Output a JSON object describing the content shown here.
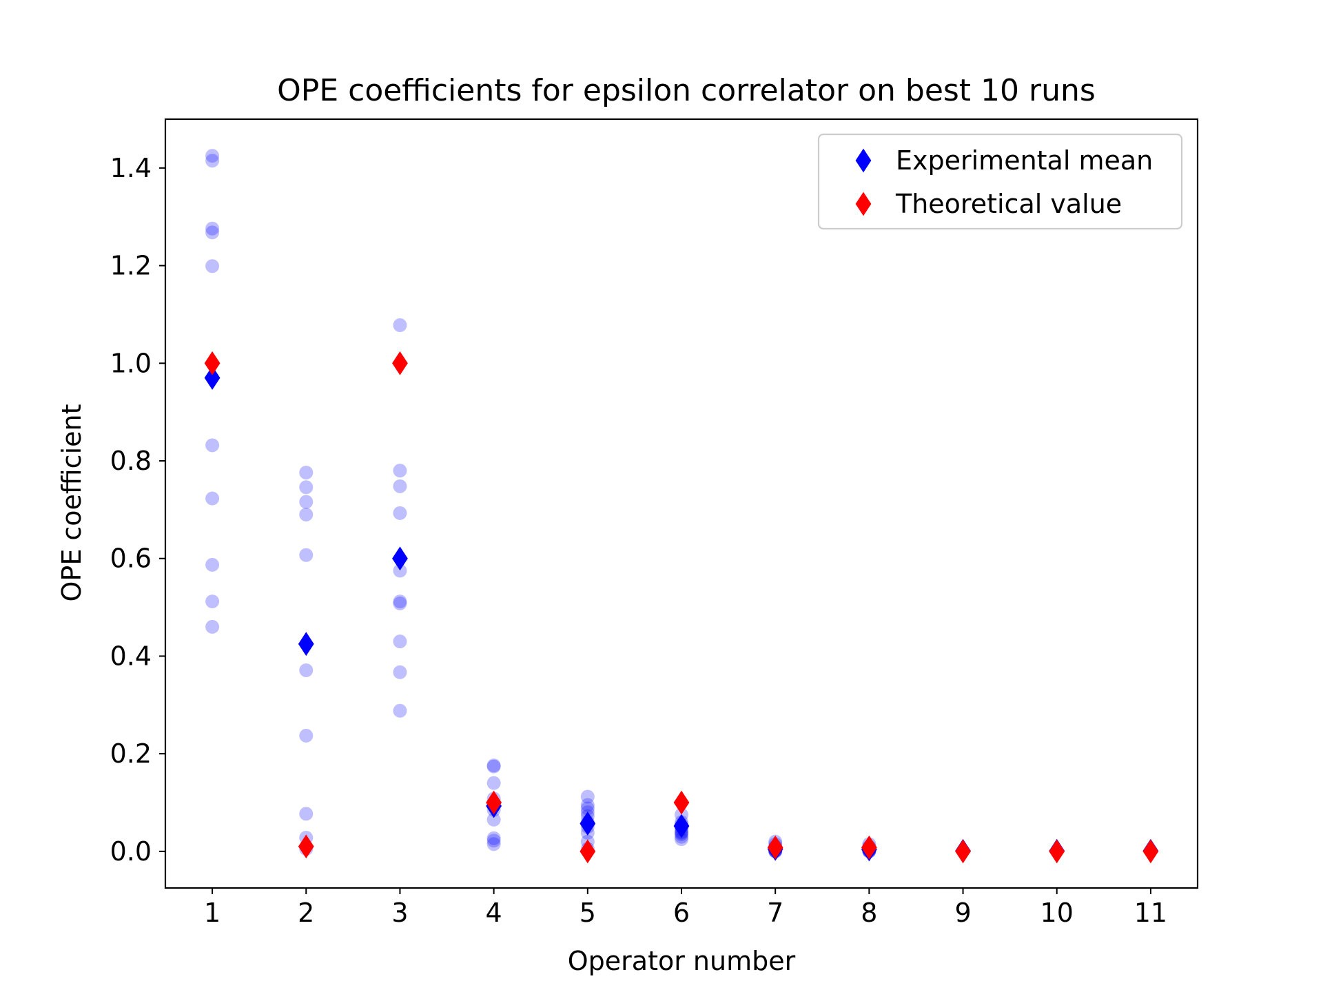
{
  "chart_data": {
    "type": "scatter",
    "title": "OPE coefficients for epsilon correlator on best 10 runs",
    "xlabel": "Operator number",
    "ylabel": "OPE coefficient",
    "xlim": [
      0.5,
      11.5
    ],
    "ylim": [
      -0.075,
      1.5
    ],
    "xticks": [
      "1",
      "2",
      "3",
      "4",
      "5",
      "6",
      "7",
      "8",
      "9",
      "10",
      "11"
    ],
    "yticks": [
      "0.0",
      "0.2",
      "0.4",
      "0.6",
      "0.8",
      "1.0",
      "1.2",
      "1.4"
    ],
    "grid": false,
    "legend_position": "top-right",
    "series": [
      {
        "name": "Experimental runs",
        "marker": "circle",
        "color": "#0000ff",
        "opacity": 0.25,
        "in_legend": false,
        "points": [
          [
            1,
            1.425
          ],
          [
            1,
            1.415
          ],
          [
            1,
            1.276
          ],
          [
            1,
            1.268
          ],
          [
            1,
            1.199
          ],
          [
            1,
            0.832
          ],
          [
            1,
            0.723
          ],
          [
            1,
            0.587
          ],
          [
            1,
            0.512
          ],
          [
            1,
            0.46
          ],
          [
            2,
            0.776
          ],
          [
            2,
            0.746
          ],
          [
            2,
            0.716
          ],
          [
            2,
            0.69
          ],
          [
            2,
            0.607
          ],
          [
            2,
            0.371
          ],
          [
            2,
            0.237
          ],
          [
            2,
            0.077
          ],
          [
            2,
            0.028
          ],
          [
            2,
            0.005
          ],
          [
            3,
            1.078
          ],
          [
            3,
            0.78
          ],
          [
            3,
            0.748
          ],
          [
            3,
            0.693
          ],
          [
            3,
            0.575
          ],
          [
            3,
            0.512
          ],
          [
            3,
            0.508
          ],
          [
            3,
            0.43
          ],
          [
            3,
            0.367
          ],
          [
            3,
            0.288
          ],
          [
            4,
            0.176
          ],
          [
            4,
            0.174
          ],
          [
            4,
            0.14
          ],
          [
            4,
            0.108
          ],
          [
            4,
            0.095
          ],
          [
            4,
            0.085
          ],
          [
            4,
            0.065
          ],
          [
            4,
            0.027
          ],
          [
            4,
            0.022
          ],
          [
            4,
            0.015
          ],
          [
            5,
            0.112
          ],
          [
            5,
            0.095
          ],
          [
            5,
            0.088
          ],
          [
            5,
            0.08
          ],
          [
            5,
            0.072
          ],
          [
            5,
            0.06
          ],
          [
            5,
            0.05
          ],
          [
            5,
            0.038
          ],
          [
            5,
            0.02
          ],
          [
            5,
            0.005
          ],
          [
            6,
            0.075
          ],
          [
            6,
            0.06
          ],
          [
            6,
            0.055
          ],
          [
            6,
            0.05
          ],
          [
            6,
            0.045
          ],
          [
            6,
            0.04
          ],
          [
            6,
            0.038
          ],
          [
            6,
            0.035
          ],
          [
            6,
            0.03
          ],
          [
            6,
            0.025
          ],
          [
            7,
            0.02
          ],
          [
            7,
            0.015
          ],
          [
            7,
            0.01
          ],
          [
            7,
            0.008
          ],
          [
            7,
            0.005
          ],
          [
            7,
            0.003
          ],
          [
            7,
            0.002
          ],
          [
            7,
            0.001
          ],
          [
            7,
            0.0
          ],
          [
            7,
            0.0
          ],
          [
            8,
            0.015
          ],
          [
            8,
            0.01
          ],
          [
            8,
            0.008
          ],
          [
            8,
            0.005
          ],
          [
            8,
            0.004
          ],
          [
            8,
            0.003
          ],
          [
            8,
            0.002
          ],
          [
            8,
            0.001
          ],
          [
            8,
            0.0
          ],
          [
            8,
            0.0
          ]
        ]
      },
      {
        "name": "Experimental mean",
        "marker": "diamond",
        "color": "#0000ff",
        "in_legend": true,
        "points": [
          [
            1,
            0.97
          ],
          [
            2,
            0.425
          ],
          [
            3,
            0.6
          ],
          [
            4,
            0.093
          ],
          [
            5,
            0.057
          ],
          [
            6,
            0.052
          ],
          [
            7,
            0.005
          ],
          [
            8,
            0.004
          ],
          [
            9,
            0.001
          ],
          [
            10,
            0.001
          ],
          [
            11,
            0.001
          ]
        ]
      },
      {
        "name": "Theoretical value",
        "marker": "diamond",
        "color": "#ff0000",
        "in_legend": true,
        "points": [
          [
            1,
            1.0
          ],
          [
            2,
            0.01
          ],
          [
            3,
            1.0
          ],
          [
            4,
            0.1
          ],
          [
            5,
            0.0
          ],
          [
            6,
            0.1
          ],
          [
            7,
            0.008
          ],
          [
            8,
            0.008
          ],
          [
            9,
            0.0
          ],
          [
            10,
            0.0
          ],
          [
            11,
            0.0
          ]
        ]
      }
    ]
  }
}
